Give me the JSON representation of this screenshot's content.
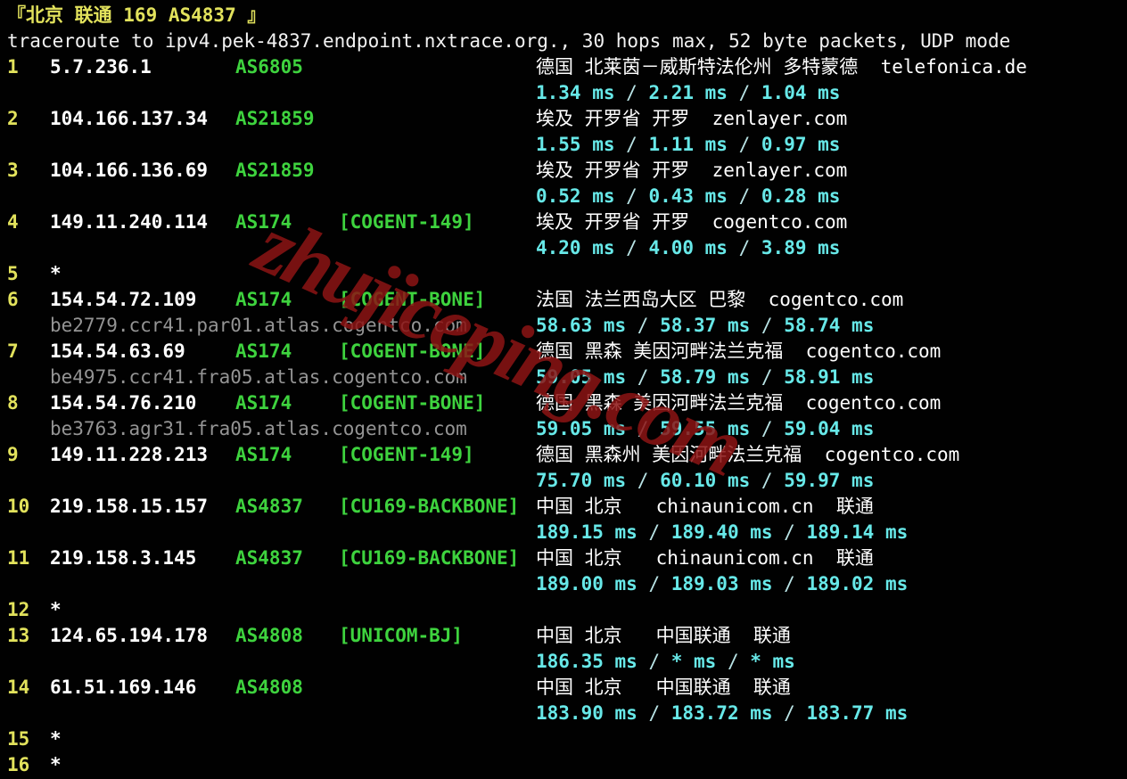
{
  "terminal": {
    "header": "『北京 联通 169 AS4837 』",
    "trace_line": "traceroute to ipv4.pek-4837.endpoint.nxtrace.org., 30 hops max, 52 byte packets, UDP mode",
    "watermark": "zhujiceping.com",
    "colors": {
      "background": "#010101",
      "hop_number": "#e2e25c",
      "asn_green": "#3ed33e",
      "latency_cyan": "#67e8e8",
      "text_white": "#ffffff",
      "hostname_gray": "#949494",
      "watermark_red": "#8c1414"
    },
    "latency_separator": "/",
    "hops": [
      {
        "num": "1",
        "ip": "5.7.236.1",
        "asn": "AS6805",
        "tag": "",
        "geo": "德国 北莱茵－威斯特法伦州 多特蒙德  telefonica.de",
        "hostname": "",
        "rtt": [
          "1.34 ms",
          "2.21 ms",
          "1.04 ms"
        ]
      },
      {
        "num": "2",
        "ip": "104.166.137.34",
        "asn": "AS21859",
        "tag": "",
        "geo": "埃及 开罗省 开罗  zenlayer.com",
        "hostname": "",
        "rtt": [
          "1.55 ms",
          "1.11 ms",
          "0.97 ms"
        ]
      },
      {
        "num": "3",
        "ip": "104.166.136.69",
        "asn": "AS21859",
        "tag": "",
        "geo": "埃及 开罗省 开罗  zenlayer.com",
        "hostname": "",
        "rtt": [
          "0.52 ms",
          "0.43 ms",
          "0.28 ms"
        ]
      },
      {
        "num": "4",
        "ip": "149.11.240.114",
        "asn": "AS174",
        "tag": "[COGENT-149]",
        "geo": "埃及 开罗省 开罗  cogentco.com",
        "hostname": "",
        "rtt": [
          "4.20 ms",
          "4.00 ms",
          "3.89 ms"
        ]
      },
      {
        "num": "5",
        "ip": "*",
        "asn": "",
        "tag": "",
        "geo": "",
        "hostname": "",
        "rtt": null
      },
      {
        "num": "6",
        "ip": "154.54.72.109",
        "asn": "AS174",
        "tag": "[COGENT-BONE]",
        "geo": "法国 法兰西岛大区 巴黎  cogentco.com",
        "hostname": "be2779.ccr41.par01.atlas.cogentco.com",
        "rtt": [
          "58.63 ms",
          "58.37 ms",
          "58.74 ms"
        ]
      },
      {
        "num": "7",
        "ip": "154.54.63.69",
        "asn": "AS174",
        "tag": "[COGENT-BONE]",
        "geo": "德国 黑森 美因河畔法兰克福  cogentco.com",
        "hostname": "be4975.ccr41.fra05.atlas.cogentco.com",
        "rtt": [
          "59.05 ms",
          "58.79 ms",
          "58.91 ms"
        ]
      },
      {
        "num": "8",
        "ip": "154.54.76.210",
        "asn": "AS174",
        "tag": "[COGENT-BONE]",
        "geo": "德国 黑森 美因河畔法兰克福  cogentco.com",
        "hostname": "be3763.agr31.fra05.atlas.cogentco.com",
        "rtt": [
          "59.05 ms",
          "59.55 ms",
          "59.04 ms"
        ]
      },
      {
        "num": "9",
        "ip": "149.11.228.213",
        "asn": "AS174",
        "tag": "[COGENT-149]",
        "geo": "德国 黑森州 美因河畔法兰克福  cogentco.com",
        "hostname": "",
        "rtt": [
          "75.70 ms",
          "60.10 ms",
          "59.97 ms"
        ]
      },
      {
        "num": "10",
        "ip": "219.158.15.157",
        "asn": "AS4837",
        "tag": "[CU169-BACKBONE]",
        "geo": "中国 北京   chinaunicom.cn  联通",
        "hostname": "",
        "rtt": [
          "189.15 ms",
          "189.40 ms",
          "189.14 ms"
        ]
      },
      {
        "num": "11",
        "ip": "219.158.3.145",
        "asn": "AS4837",
        "tag": "[CU169-BACKBONE]",
        "geo": "中国 北京   chinaunicom.cn  联通",
        "hostname": "",
        "rtt": [
          "189.00 ms",
          "189.03 ms",
          "189.02 ms"
        ]
      },
      {
        "num": "12",
        "ip": "*",
        "asn": "",
        "tag": "",
        "geo": "",
        "hostname": "",
        "rtt": null
      },
      {
        "num": "13",
        "ip": "124.65.194.178",
        "asn": "AS4808",
        "tag": "[UNICOM-BJ]",
        "geo": "中国 北京   中国联通  联通",
        "hostname": "",
        "rtt": [
          "186.35 ms",
          "* ms",
          "* ms"
        ]
      },
      {
        "num": "14",
        "ip": "61.51.169.146",
        "asn": "AS4808",
        "tag": "",
        "geo": "中国 北京   中国联通  联通",
        "hostname": "",
        "rtt": [
          "183.90 ms",
          "183.72 ms",
          "183.77 ms"
        ]
      },
      {
        "num": "15",
        "ip": "*",
        "asn": "",
        "tag": "",
        "geo": "",
        "hostname": "",
        "rtt": null
      },
      {
        "num": "16",
        "ip": "*",
        "asn": "",
        "tag": "",
        "geo": "",
        "hostname": "",
        "rtt": null
      }
    ]
  }
}
